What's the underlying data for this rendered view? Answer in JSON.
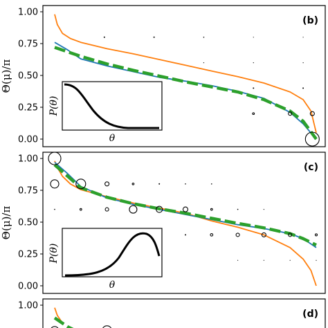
{
  "chart_data": [
    {
      "type": "line",
      "panel_label": "(b)",
      "ylabel": "Θ(μ)/π",
      "ylim": [
        0,
        1
      ],
      "yticks": [
        "0.00",
        "0.25",
        "0.50",
        "0.75",
        "1.00"
      ],
      "grid": false,
      "series": [
        {
          "color": "#ff7f0e",
          "style": "solid",
          "x": [
            0.0,
            0.01,
            0.03,
            0.06,
            0.1,
            0.2,
            0.3,
            0.4,
            0.5,
            0.6,
            0.7,
            0.8,
            0.9,
            0.95,
            0.98,
            1.0
          ],
          "y": [
            0.98,
            0.9,
            0.83,
            0.79,
            0.76,
            0.71,
            0.67,
            0.625,
            0.58,
            0.535,
            0.49,
            0.44,
            0.37,
            0.31,
            0.22,
            0.05
          ]
        },
        {
          "color": "#1f77b4",
          "style": "solid",
          "x": [
            0.0,
            0.05,
            0.1,
            0.2,
            0.3,
            0.4,
            0.5,
            0.6,
            0.7,
            0.8,
            0.9,
            0.95,
            1.0
          ],
          "y": [
            0.76,
            0.7,
            0.63,
            0.575,
            0.53,
            0.485,
            0.455,
            0.42,
            0.375,
            0.32,
            0.21,
            0.12,
            0.0
          ]
        },
        {
          "color": "#2ca02c",
          "style": "dashed",
          "x": [
            0.0,
            0.1,
            0.2,
            0.3,
            0.4,
            0.5,
            0.6,
            0.7,
            0.8,
            0.9,
            0.95,
            1.0
          ],
          "y": [
            0.72,
            0.65,
            0.59,
            0.54,
            0.495,
            0.45,
            0.41,
            0.37,
            0.31,
            0.22,
            0.14,
            0.0
          ]
        }
      ],
      "markers": [
        {
          "x": 0.19,
          "y": 0.8,
          "r": 1
        },
        {
          "x": 0.38,
          "y": 0.8,
          "r": 1
        },
        {
          "x": 0.57,
          "y": 0.8,
          "r": 0.8
        },
        {
          "x": 0.76,
          "y": 0.8,
          "r": 0.6
        },
        {
          "x": 0.95,
          "y": 0.8,
          "r": 0.6
        },
        {
          "x": 0.57,
          "y": 0.6,
          "r": 0.6
        },
        {
          "x": 0.76,
          "y": 0.6,
          "r": 0.6
        },
        {
          "x": 0.95,
          "y": 0.6,
          "r": 0.6
        },
        {
          "x": 0.76,
          "y": 0.4,
          "r": 1
        },
        {
          "x": 0.95,
          "y": 0.4,
          "r": 1
        },
        {
          "x": 0.76,
          "y": 0.2,
          "r": 1.3
        },
        {
          "x": 0.9,
          "y": 0.2,
          "r": 2.5
        },
        {
          "x": 0.985,
          "y": 0.2,
          "r": 3
        },
        {
          "x": 0.985,
          "y": 0.0,
          "r": 10
        }
      ],
      "inset": {
        "ylabel": "P(θ)",
        "xlabel": "θ",
        "shape": "decreasing"
      }
    },
    {
      "type": "line",
      "panel_label": "(c)",
      "ylabel": "Θ(μ)/π",
      "ylim": [
        0,
        1
      ],
      "yticks": [
        "0.00",
        "0.25",
        "0.50",
        "0.75",
        "1.00"
      ],
      "grid": false,
      "series": [
        {
          "color": "#ff7f0e",
          "style": "solid",
          "x": [
            0.0,
            0.01,
            0.03,
            0.06,
            0.1,
            0.2,
            0.3,
            0.4,
            0.5,
            0.6,
            0.7,
            0.8,
            0.9,
            0.95,
            0.98,
            1.0
          ],
          "y": [
            0.98,
            0.93,
            0.86,
            0.8,
            0.755,
            0.7,
            0.65,
            0.61,
            0.57,
            0.51,
            0.46,
            0.4,
            0.3,
            0.21,
            0.12,
            0.0
          ]
        },
        {
          "color": "#1f77b4",
          "style": "solid",
          "x": [
            0.0,
            0.05,
            0.1,
            0.2,
            0.3,
            0.4,
            0.5,
            0.6,
            0.7,
            0.8,
            0.9,
            0.95,
            1.0
          ],
          "y": [
            0.97,
            0.88,
            0.78,
            0.69,
            0.64,
            0.6,
            0.56,
            0.52,
            0.48,
            0.45,
            0.41,
            0.37,
            0.3
          ]
        },
        {
          "color": "#2ca02c",
          "style": "dashed",
          "x": [
            0.0,
            0.05,
            0.1,
            0.2,
            0.3,
            0.4,
            0.5,
            0.6,
            0.7,
            0.8,
            0.9,
            0.95,
            1.0
          ],
          "y": [
            0.95,
            0.86,
            0.77,
            0.695,
            0.645,
            0.605,
            0.57,
            0.53,
            0.49,
            0.455,
            0.41,
            0.37,
            0.32
          ]
        }
      ],
      "markers": [
        {
          "x": 0.0,
          "y": 1.0,
          "r": 9
        },
        {
          "x": 0.1,
          "y": 0.8,
          "r": 7
        },
        {
          "x": 0.0,
          "y": 0.8,
          "r": 6
        },
        {
          "x": 0.2,
          "y": 0.8,
          "r": 3
        },
        {
          "x": 0.3,
          "y": 0.8,
          "r": 1.3
        },
        {
          "x": 0.4,
          "y": 0.8,
          "r": 1
        },
        {
          "x": 0.5,
          "y": 0.8,
          "r": 0.8
        },
        {
          "x": 0.6,
          "y": 0.8,
          "r": 0.8
        },
        {
          "x": 0.0,
          "y": 0.6,
          "r": 0.8
        },
        {
          "x": 0.1,
          "y": 0.6,
          "r": 1.3
        },
        {
          "x": 0.2,
          "y": 0.6,
          "r": 2.5
        },
        {
          "x": 0.3,
          "y": 0.6,
          "r": 5.5
        },
        {
          "x": 0.4,
          "y": 0.6,
          "r": 4.5
        },
        {
          "x": 0.5,
          "y": 0.6,
          "r": 3.5
        },
        {
          "x": 0.6,
          "y": 0.6,
          "r": 1.3
        },
        {
          "x": 0.7,
          "y": 0.6,
          "r": 0.8
        },
        {
          "x": 0.8,
          "y": 0.6,
          "r": 0.6
        },
        {
          "x": 0.5,
          "y": 0.4,
          "r": 1
        },
        {
          "x": 0.6,
          "y": 0.4,
          "r": 1.8
        },
        {
          "x": 0.7,
          "y": 0.4,
          "r": 2.5
        },
        {
          "x": 0.8,
          "y": 0.4,
          "r": 3
        },
        {
          "x": 0.9,
          "y": 0.4,
          "r": 2.5
        },
        {
          "x": 1.0,
          "y": 0.4,
          "r": 1.5
        },
        {
          "x": 0.7,
          "y": 0.2,
          "r": 0.6
        },
        {
          "x": 0.8,
          "y": 0.2,
          "r": 0.6
        },
        {
          "x": 0.9,
          "y": 0.2,
          "r": 0.6
        },
        {
          "x": 1.0,
          "y": 0.2,
          "r": 0.6
        }
      ],
      "inset": {
        "ylabel": "P(θ)",
        "xlabel": "θ",
        "shape": "peaked"
      }
    },
    {
      "type": "line",
      "panel_label": "(d)",
      "ylabel": "",
      "ylim": [
        0,
        1
      ],
      "yticks": [
        "1.00"
      ],
      "grid": false,
      "series": [
        {
          "color": "#ff7f0e",
          "style": "solid",
          "x": [
            0.0,
            0.01,
            0.03
          ],
          "y": [
            0.98,
            0.92,
            0.86
          ]
        },
        {
          "color": "#2ca02c",
          "style": "dashed",
          "x": [
            0.0,
            0.05,
            0.1
          ],
          "y": [
            0.9,
            0.83,
            0.78
          ]
        }
      ],
      "markers": [
        {
          "x": 0.0,
          "y": 0.8,
          "r": 6
        },
        {
          "x": 0.2,
          "y": 0.8,
          "r": 7
        }
      ]
    }
  ]
}
